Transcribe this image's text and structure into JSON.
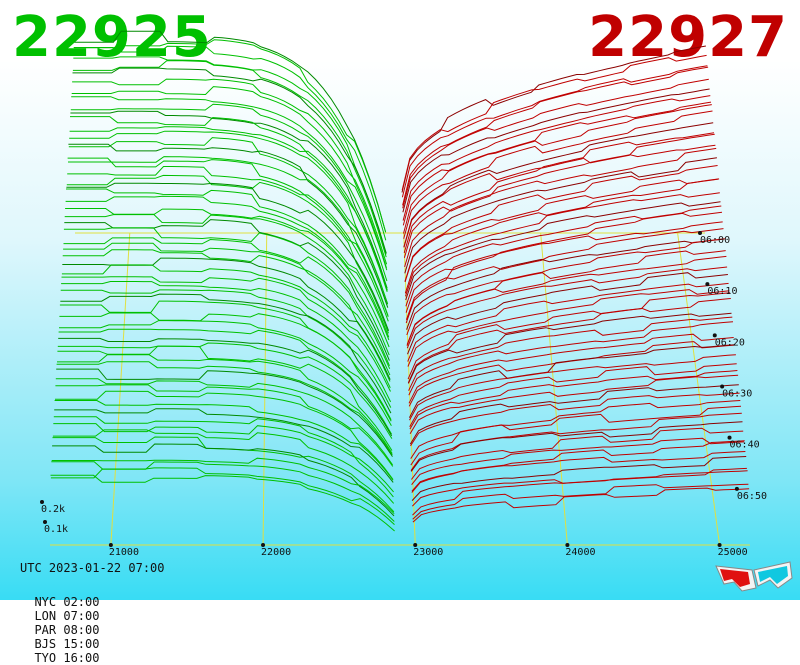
{
  "prices": {
    "bid": "22925",
    "ask": "22927"
  },
  "colors": {
    "bid": "#00c000",
    "bid_dark": "#008a00",
    "ask": "#c00000",
    "ask_dark": "#8c0000",
    "grid": "#e0e040",
    "baseline": "#a040e0"
  },
  "chart_data": {
    "type": "area",
    "x_ticks": [
      "21000",
      "22000",
      "23000",
      "24000",
      "25000"
    ],
    "y_ticks": [
      "0.2k",
      "0.1k"
    ],
    "time_ticks": [
      "06:00",
      "06:10",
      "06:20",
      "06:30",
      "06:40",
      "06:50"
    ],
    "xlim": [
      20600,
      25200
    ],
    "mid_price": 22926,
    "profile_count": 60,
    "grid": true
  },
  "footer": {
    "utc": "UTC 2023-01-22 07:00",
    "zones": [
      "NYC 02:00",
      "LON 07:00",
      "PAR 08:00",
      "BJS 15:00",
      "TYO 16:00"
    ]
  },
  "icons": {
    "glasses": "3d-glasses-icon"
  }
}
